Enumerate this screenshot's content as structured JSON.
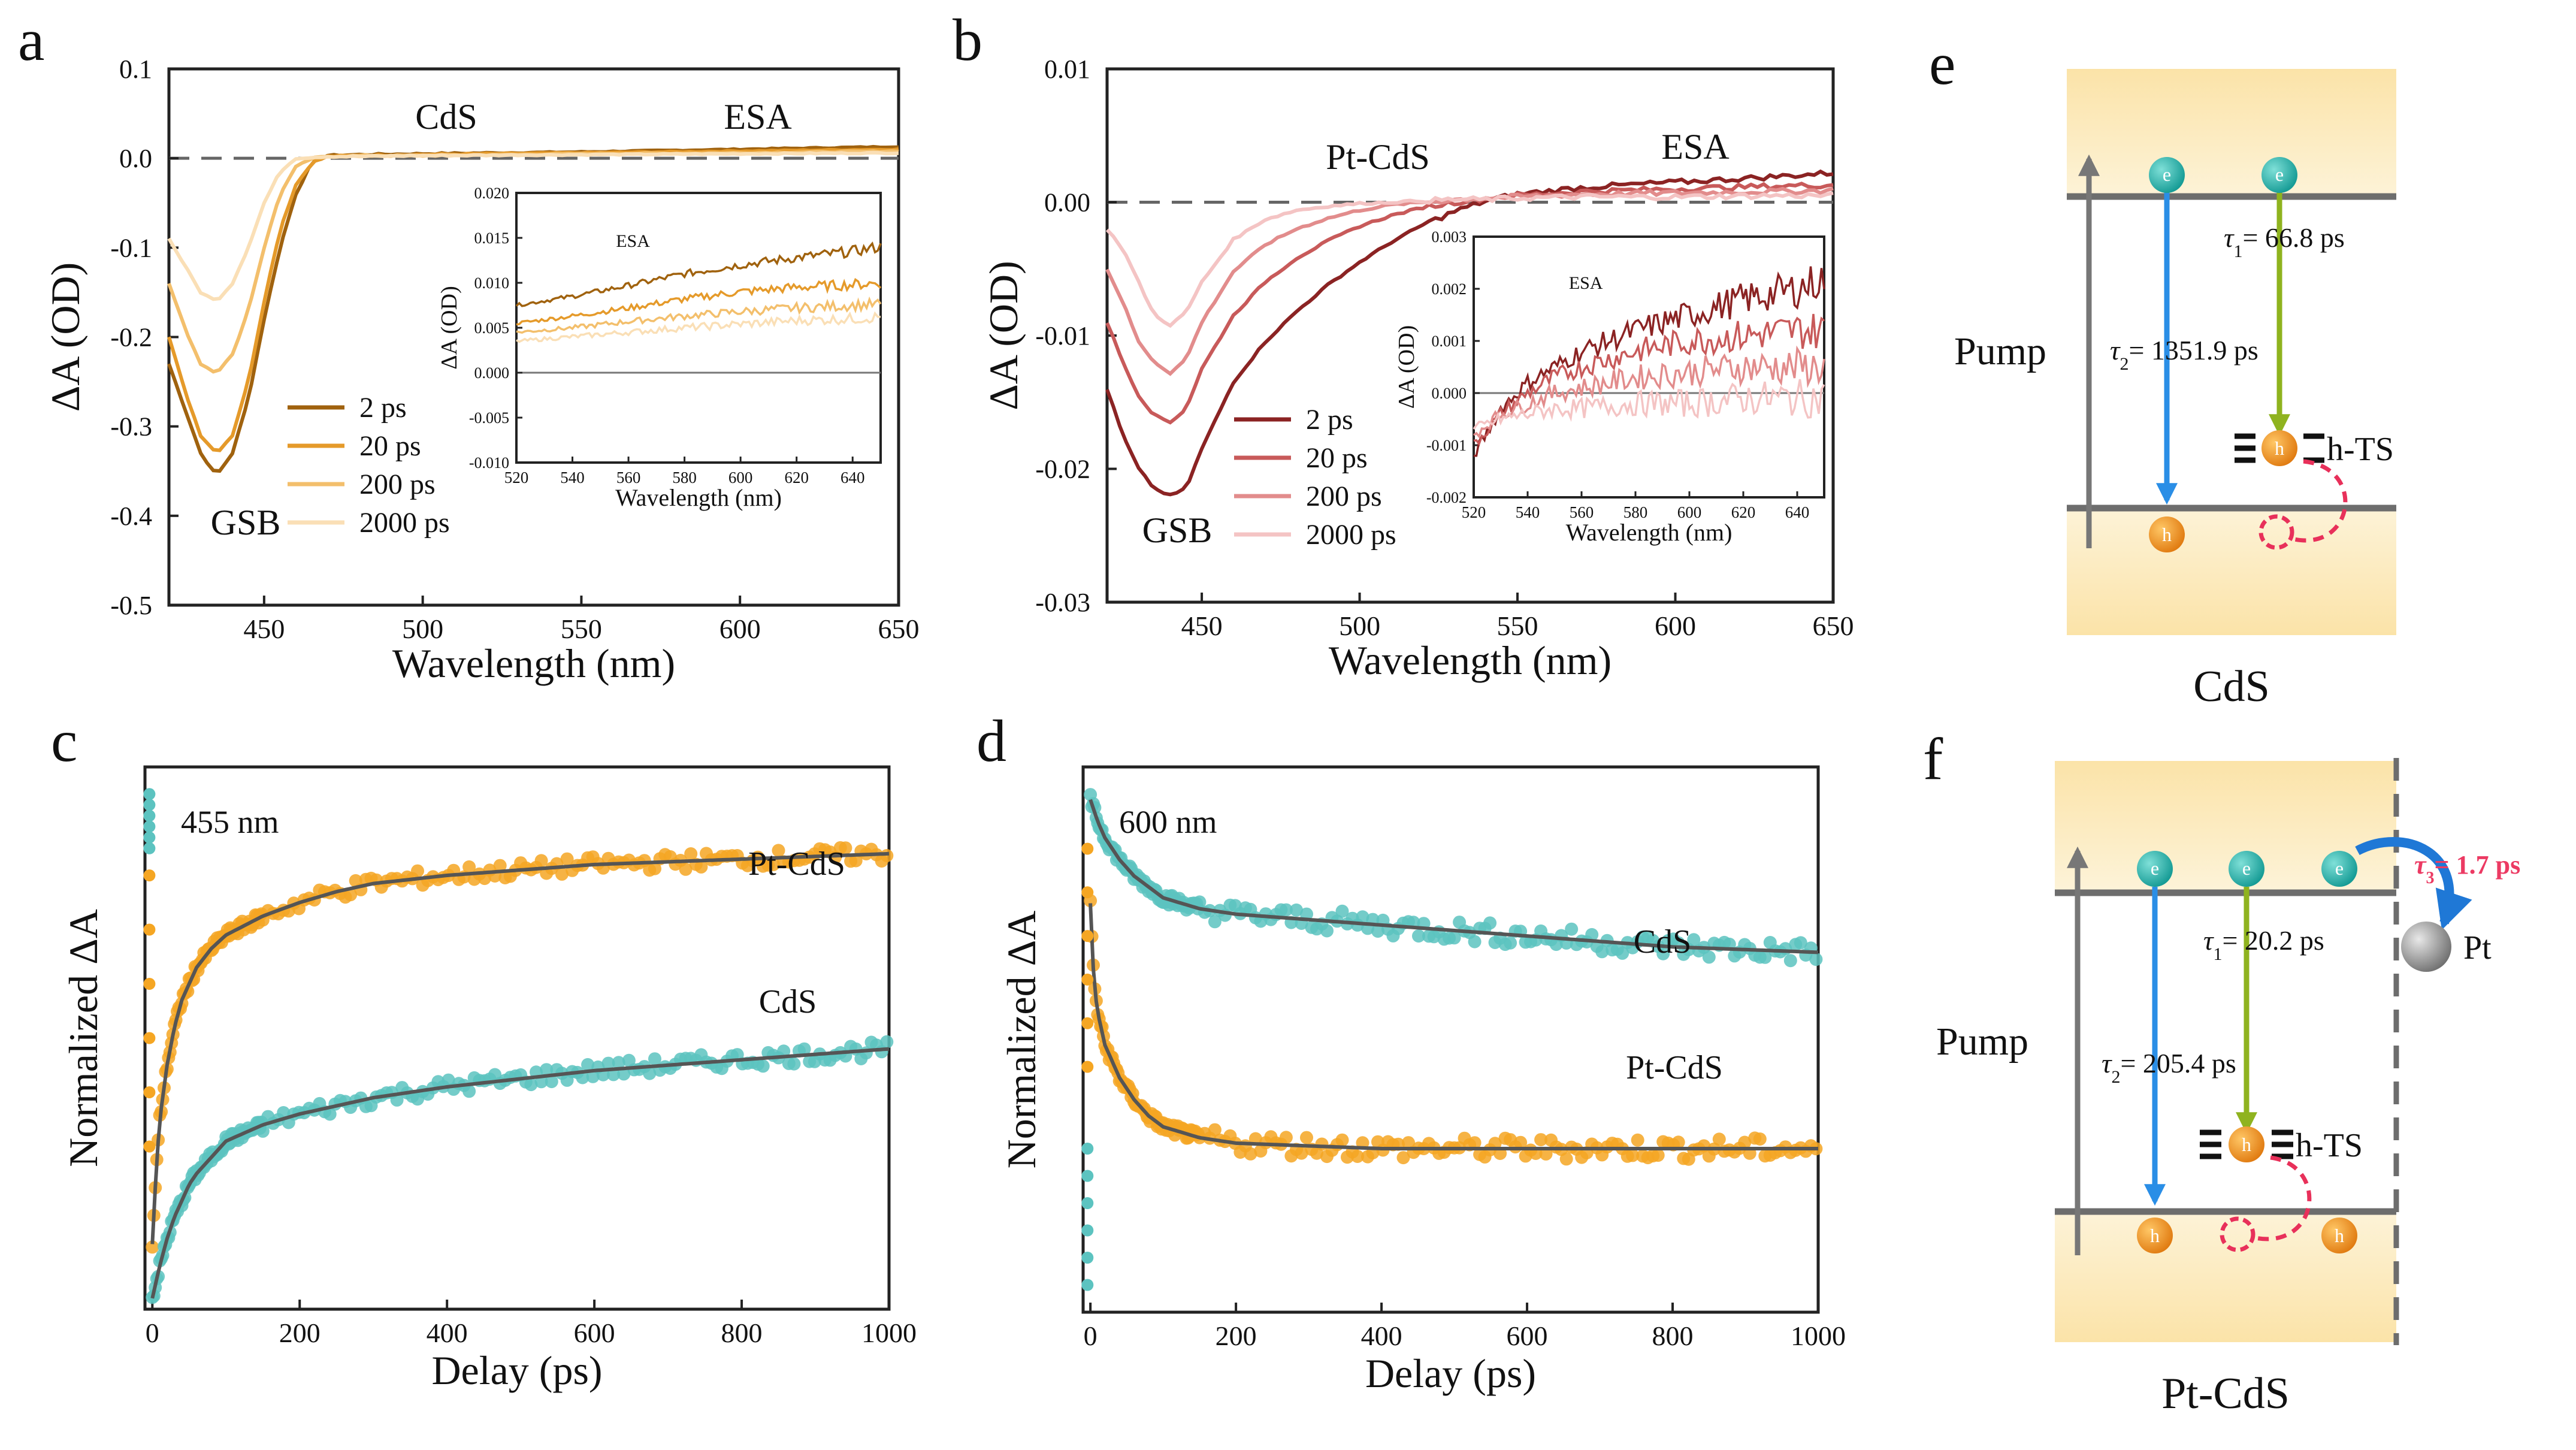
{
  "chart_data": [
    {
      "panel": "a",
      "type": "line",
      "title": "CdS",
      "xlabel": "Wavelength (nm)",
      "ylabel": "ΔA (OD)",
      "xlim": [
        420,
        650
      ],
      "ylim": [
        -0.5,
        0.1
      ],
      "xticks": [
        450,
        500,
        550,
        600,
        650
      ],
      "yticks": [
        0.1,
        0.0,
        -0.1,
        -0.2,
        -0.3,
        -0.4,
        -0.5
      ],
      "ytick_labels": [
        "0.1",
        "0.0",
        "-0.1",
        "-0.2",
        "-0.3",
        "-0.4",
        "-0.5"
      ],
      "annotations": [
        "CdS",
        "ESA",
        "GSB"
      ],
      "legend": [
        "2 ps",
        "20 ps",
        "200 ps",
        "2000 ps"
      ],
      "colors": [
        "#a0620e",
        "#e59a2a",
        "#f3bf6c",
        "#fadfb6"
      ],
      "series": [
        {
          "name": "2 ps",
          "x": [
            420,
            425,
            430,
            435,
            440,
            445,
            450,
            455,
            460,
            465,
            470,
            480,
            500,
            550,
            600,
            650
          ],
          "y": [
            -0.23,
            -0.28,
            -0.33,
            -0.355,
            -0.33,
            -0.27,
            -0.18,
            -0.1,
            -0.04,
            -0.005,
            0.003,
            0.004,
            0.005,
            0.007,
            0.01,
            0.013
          ]
        },
        {
          "name": "20 ps",
          "x": [
            420,
            425,
            430,
            435,
            440,
            445,
            450,
            455,
            460,
            465,
            470,
            480,
            500,
            550,
            600,
            650
          ],
          "y": [
            -0.2,
            -0.26,
            -0.31,
            -0.33,
            -0.31,
            -0.25,
            -0.16,
            -0.08,
            -0.03,
            -0.005,
            0.002,
            0.003,
            0.004,
            0.006,
            0.008,
            0.01
          ]
        },
        {
          "name": "200 ps",
          "x": [
            420,
            425,
            430,
            435,
            440,
            445,
            450,
            455,
            460,
            465,
            470,
            480,
            500,
            550,
            600,
            650
          ],
          "y": [
            -0.14,
            -0.19,
            -0.23,
            -0.24,
            -0.22,
            -0.17,
            -0.1,
            -0.04,
            -0.01,
            0.0,
            0.002,
            0.003,
            0.003,
            0.005,
            0.006,
            0.008
          ]
        },
        {
          "name": "2000 ps",
          "x": [
            420,
            425,
            430,
            435,
            440,
            445,
            450,
            455,
            460,
            465,
            470,
            480,
            500,
            550,
            600,
            650
          ],
          "y": [
            -0.09,
            -0.12,
            -0.15,
            -0.16,
            -0.14,
            -0.1,
            -0.05,
            -0.015,
            0.0,
            0.001,
            0.002,
            0.002,
            0.003,
            0.004,
            0.005,
            0.006
          ]
        }
      ],
      "inset": {
        "xlabel": "Wavelength (nm)",
        "ylabel": "ΔA (OD)",
        "title": "ESA",
        "xlim": [
          520,
          650
        ],
        "ylim": [
          -0.01,
          0.02
        ],
        "xticks": [
          520,
          540,
          560,
          580,
          600,
          620,
          640
        ],
        "yticks": [
          0.02,
          0.015,
          0.01,
          0.005,
          0.0,
          -0.005,
          -0.01
        ],
        "ytick_labels": [
          "0.020",
          "0.015",
          "0.010",
          "0.005",
          "0.000",
          "-0.005",
          "-0.010"
        ],
        "series": [
          {
            "name": "2 ps",
            "x": [
              520,
              540,
              560,
              580,
              600,
              620,
              640,
              650
            ],
            "y": [
              0.0075,
              0.0085,
              0.0097,
              0.011,
              0.012,
              0.0128,
              0.0135,
              0.014
            ]
          },
          {
            "name": "20 ps",
            "x": [
              520,
              540,
              560,
              580,
              600,
              620,
              640,
              650
            ],
            "y": [
              0.0055,
              0.0063,
              0.0072,
              0.0082,
              0.009,
              0.0095,
              0.0098,
              0.01
            ]
          },
          {
            "name": "200 ps",
            "x": [
              520,
              540,
              560,
              580,
              600,
              620,
              640,
              650
            ],
            "y": [
              0.0045,
              0.005,
              0.0057,
              0.0063,
              0.0068,
              0.0072,
              0.0075,
              0.0076
            ]
          },
          {
            "name": "2000 ps",
            "x": [
              520,
              540,
              560,
              580,
              600,
              620,
              640,
              650
            ],
            "y": [
              0.0035,
              0.004,
              0.0045,
              0.005,
              0.0054,
              0.0058,
              0.006,
              0.0062
            ]
          }
        ]
      }
    },
    {
      "panel": "b",
      "type": "line",
      "title": "Pt-CdS",
      "xlabel": "Wavelength (nm)",
      "ylabel": "ΔA (OD)",
      "xlim": [
        420,
        650
      ],
      "ylim": [
        -0.03,
        0.01
      ],
      "xticks": [
        450,
        500,
        550,
        600,
        650
      ],
      "yticks": [
        0.01,
        0.0,
        -0.01,
        -0.02,
        -0.03
      ],
      "ytick_labels": [
        "0.01",
        "0.00",
        "-0.01",
        "-0.02",
        "-0.03"
      ],
      "annotations": [
        "Pt-CdS",
        "ESA",
        "GSB"
      ],
      "legend": [
        "2 ps",
        "20 ps",
        "200 ps",
        "2000 ps"
      ],
      "colors": [
        "#8b2323",
        "#c85a5a",
        "#e28c8c",
        "#f4c4c4"
      ],
      "series": [
        {
          "name": "2 ps",
          "x": [
            420,
            425,
            430,
            435,
            440,
            445,
            450,
            460,
            470,
            480,
            490,
            500,
            510,
            520,
            530,
            540,
            550,
            570,
            600,
            630,
            650
          ],
          "y": [
            -0.014,
            -0.0175,
            -0.02,
            -0.0215,
            -0.022,
            -0.0215,
            -0.0185,
            -0.0135,
            -0.0105,
            -0.0082,
            -0.0062,
            -0.0045,
            -0.003,
            -0.0017,
            -0.0007,
            0.0001,
            0.0006,
            0.0011,
            0.0015,
            0.0019,
            0.0022
          ]
        },
        {
          "name": "20 ps",
          "x": [
            420,
            425,
            430,
            435,
            440,
            445,
            450,
            460,
            470,
            480,
            490,
            500,
            510,
            520,
            530,
            540,
            550,
            570,
            600,
            630,
            650
          ],
          "y": [
            -0.009,
            -0.012,
            -0.0145,
            -0.016,
            -0.0165,
            -0.0155,
            -0.0125,
            -0.0085,
            -0.006,
            -0.0042,
            -0.0029,
            -0.0018,
            -0.001,
            -0.0004,
            0.0,
            0.0003,
            0.0005,
            0.0008,
            0.001,
            0.0012,
            0.0013
          ]
        },
        {
          "name": "200 ps",
          "x": [
            420,
            425,
            430,
            435,
            440,
            445,
            450,
            460,
            470,
            480,
            490,
            500,
            510,
            520,
            530,
            540,
            550,
            570,
            600,
            630,
            650
          ],
          "y": [
            -0.005,
            -0.0075,
            -0.0105,
            -0.012,
            -0.0128,
            -0.0118,
            -0.009,
            -0.0052,
            -0.0032,
            -0.002,
            -0.0012,
            -0.0006,
            -0.0002,
            0.0,
            0.0002,
            0.0003,
            0.0004,
            0.0006,
            0.0007,
            0.0008,
            0.0009
          ]
        },
        {
          "name": "2000 ps",
          "x": [
            420,
            425,
            430,
            435,
            440,
            445,
            450,
            460,
            470,
            480,
            490,
            500,
            510,
            520,
            530,
            540,
            550,
            570,
            600,
            630,
            650
          ],
          "y": [
            -0.002,
            -0.0035,
            -0.006,
            -0.0085,
            -0.0092,
            -0.0083,
            -0.006,
            -0.0028,
            -0.0013,
            -0.0006,
            -0.0003,
            -0.0001,
            0.0,
            0.0001,
            0.0002,
            0.0002,
            0.0003,
            0.0004,
            0.0004,
            0.0005,
            0.0005
          ]
        }
      ],
      "inset": {
        "xlabel": "Wavelength (nm)",
        "ylabel": "ΔA (OD)",
        "title": "ESA",
        "xlim": [
          520,
          650
        ],
        "ylim": [
          -0.002,
          0.003
        ],
        "xticks": [
          520,
          540,
          560,
          580,
          600,
          620,
          640
        ],
        "yticks": [
          0.003,
          0.002,
          0.001,
          0.0,
          -0.001,
          -0.002
        ],
        "ytick_labels": [
          "0.003",
          "0.002",
          "0.001",
          "0.000",
          "-0.001",
          "-0.002"
        ],
        "series": [
          {
            "name": "2 ps",
            "x": [
              520,
              530,
              540,
              550,
              560,
              580,
              600,
              620,
              640,
              650
            ],
            "y": [
              -0.0012,
              -0.0003,
              0.0002,
              0.0005,
              0.0008,
              0.0012,
              0.0015,
              0.0018,
              0.002,
              0.0022
            ]
          },
          {
            "name": "20 ps",
            "x": [
              520,
              530,
              540,
              550,
              560,
              580,
              600,
              620,
              640,
              650
            ],
            "y": [
              -0.001,
              -0.0004,
              0.0,
              0.0003,
              0.0005,
              0.0008,
              0.001,
              0.0011,
              0.0012,
              0.0012
            ]
          },
          {
            "name": "200 ps",
            "x": [
              520,
              530,
              540,
              550,
              560,
              580,
              600,
              620,
              640,
              650
            ],
            "y": [
              -0.0008,
              -0.0004,
              -0.0002,
              0.0,
              0.0001,
              0.0003,
              0.0004,
              0.0005,
              0.0005,
              0.0005
            ]
          },
          {
            "name": "2000 ps",
            "x": [
              520,
              530,
              540,
              550,
              560,
              580,
              600,
              620,
              640,
              650
            ],
            "y": [
              -0.0007,
              -0.0005,
              -0.0004,
              -0.0003,
              -0.0003,
              -0.0002,
              -0.0002,
              -0.0001,
              -0.0001,
              -0.0001
            ]
          }
        ]
      }
    },
    {
      "panel": "c",
      "type": "scatter",
      "title": "455 nm",
      "xlabel": "Delay (ps)",
      "ylabel": "Normalized ΔA",
      "xlim": [
        -10,
        1000
      ],
      "ylim": [
        0,
        1
      ],
      "xticks": [
        0,
        200,
        400,
        600,
        800,
        1000
      ],
      "colors": {
        "Pt-CdS": "#f5a623",
        "CdS": "#5cc3c0"
      },
      "series": [
        {
          "name": "Pt-CdS",
          "x": [
            0,
            5,
            10,
            20,
            30,
            40,
            50,
            60,
            80,
            100,
            150,
            200,
            250,
            300,
            400,
            500,
            600,
            700,
            800,
            900,
            1000
          ],
          "y": [
            0.12,
            0.25,
            0.35,
            0.45,
            0.52,
            0.57,
            0.6,
            0.63,
            0.665,
            0.69,
            0.725,
            0.75,
            0.77,
            0.785,
            0.8,
            0.81,
            0.82,
            0.825,
            0.83,
            0.835,
            0.84
          ]
        },
        {
          "name": "CdS",
          "x": [
            0,
            5,
            10,
            20,
            30,
            40,
            50,
            60,
            80,
            100,
            150,
            200,
            250,
            300,
            400,
            500,
            600,
            700,
            800,
            900,
            1000
          ],
          "y": [
            0.02,
            0.05,
            0.08,
            0.13,
            0.17,
            0.2,
            0.23,
            0.25,
            0.28,
            0.31,
            0.34,
            0.36,
            0.375,
            0.39,
            0.41,
            0.425,
            0.44,
            0.45,
            0.46,
            0.47,
            0.48
          ]
        }
      ],
      "annotations": [
        "Pt-CdS",
        "CdS"
      ]
    },
    {
      "panel": "d",
      "type": "scatter",
      "title": "600 nm",
      "xlabel": "Delay (ps)",
      "ylabel": "Normalized ΔA",
      "xlim": [
        -10,
        1000
      ],
      "ylim": [
        0,
        1
      ],
      "xticks": [
        0,
        200,
        400,
        600,
        800,
        1000
      ],
      "colors": {
        "CdS": "#5cc3c0",
        "Pt-CdS": "#f5a623"
      },
      "series": [
        {
          "name": "CdS",
          "x": [
            0,
            5,
            10,
            20,
            40,
            60,
            80,
            100,
            150,
            200,
            300,
            400,
            500,
            600,
            700,
            800,
            900,
            1000
          ],
          "y": [
            0.94,
            0.92,
            0.9,
            0.87,
            0.83,
            0.8,
            0.78,
            0.76,
            0.74,
            0.73,
            0.72,
            0.71,
            0.7,
            0.69,
            0.68,
            0.67,
            0.665,
            0.66
          ]
        },
        {
          "name": "Pt-CdS",
          "x": [
            0,
            5,
            10,
            20,
            40,
            60,
            80,
            100,
            150,
            200,
            300,
            400,
            500,
            600,
            700,
            800,
            900,
            1000
          ],
          "y": [
            0.75,
            0.6,
            0.55,
            0.49,
            0.43,
            0.39,
            0.36,
            0.34,
            0.32,
            0.31,
            0.305,
            0.3,
            0.3,
            0.3,
            0.3,
            0.3,
            0.3,
            0.3
          ]
        }
      ],
      "annotations": [
        "CdS",
        "Pt-CdS"
      ]
    },
    {
      "panel": "e",
      "type": "diagram",
      "title": "CdS",
      "labels": {
        "pump": "Pump",
        "tau1": "= 66.8 ps",
        "tau2": "= 1351.9 ps",
        "trap": "h-TS",
        "electron": "e",
        "hole": "h"
      }
    },
    {
      "panel": "f",
      "type": "diagram",
      "title": "Pt-CdS",
      "labels": {
        "pump": "Pump",
        "tau1": "= 20.2 ps",
        "tau2": "= 205.4 ps",
        "tau3": "= 1.7 ps",
        "trap": "h-TS",
        "metal": "Pt",
        "electron": "e",
        "hole": "h"
      }
    }
  ],
  "panel_labels": [
    "a",
    "b",
    "c",
    "d",
    "e",
    "f"
  ]
}
